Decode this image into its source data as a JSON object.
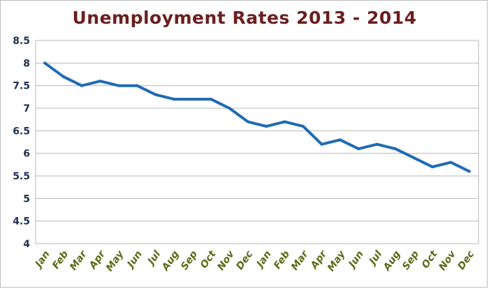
{
  "colors": {
    "title": "#6b1f1f",
    "line": "#1f6bb5",
    "grid": "#b8b8b8",
    "ytick": "#1f2f4f",
    "xtick": "#5a6b17"
  },
  "chart_data": {
    "type": "line",
    "title": "Unemployment Rates 2013 - 2014",
    "xlabel": "",
    "ylabel": "",
    "ylim": [
      4,
      8.5
    ],
    "yticks": [
      "8.5",
      "8",
      "7.5",
      "7",
      "6.5",
      "6",
      "5.5",
      "5",
      "4.5",
      "4"
    ],
    "categories": [
      "Jan",
      "Feb",
      "Mar",
      "Apr",
      "May",
      "Jun",
      "Jul",
      "Aug",
      "Sep",
      "Oct",
      "Nov",
      "Dec",
      "Jan",
      "Feb",
      "Mar",
      "Apr",
      "May",
      "Jun",
      "Jul",
      "Aug",
      "Sep",
      "Oct",
      "Nov",
      "Dec"
    ],
    "series": [
      {
        "values": [
          8.0,
          7.7,
          7.5,
          7.6,
          7.5,
          7.5,
          7.3,
          7.2,
          7.2,
          7.2,
          7.0,
          6.7,
          6.6,
          6.7,
          6.6,
          6.2,
          6.3,
          6.1,
          6.2,
          6.1,
          5.9,
          5.7,
          5.8,
          5.6
        ]
      }
    ],
    "grid": "horizontal",
    "legend": "none"
  }
}
